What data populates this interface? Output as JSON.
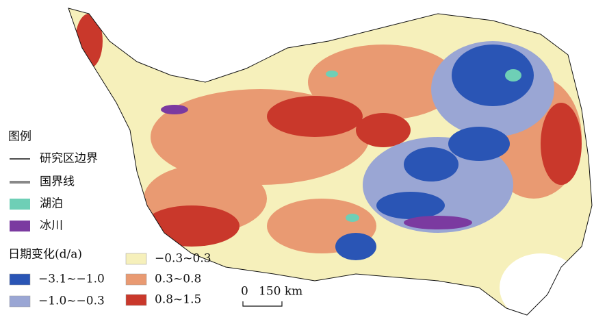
{
  "legend": {
    "title": "图例",
    "items": [
      {
        "label": "研究区边界",
        "color": "#111111"
      },
      {
        "label": "国界线",
        "color": "#888888"
      },
      {
        "label": "湖泊",
        "color": "#6ecfb6"
      },
      {
        "label": "冰川",
        "color": "#7b3aa0"
      }
    ],
    "change_title": "日期变化(d/a)",
    "classes": [
      {
        "label": "−3.1~−1.0",
        "color": "#2a55b5"
      },
      {
        "label": "−1.0~−0.3",
        "color": "#9aa6d4"
      },
      {
        "label": "−0.3~0.3",
        "color": "#f6f0bb"
      },
      {
        "label": "0.3~0.8",
        "color": "#e99a72"
      },
      {
        "label": "0.8~1.5",
        "color": "#c9382b"
      }
    ]
  },
  "scale_bar": {
    "start": "0",
    "end": "150 km"
  }
}
